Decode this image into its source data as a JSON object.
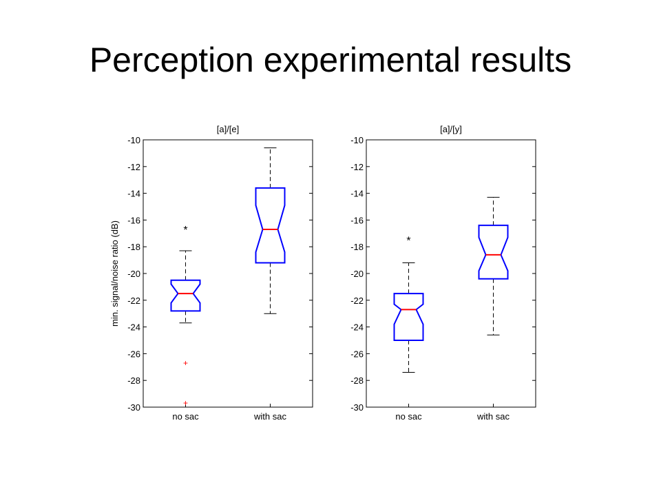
{
  "slide": {
    "title": "Perception experimental results"
  },
  "colors": {
    "box": "#0000ff",
    "median": "#ff0000",
    "outlier": "#ff0000",
    "whisker": "#000000",
    "axes": "#000000"
  },
  "chart_data": [
    {
      "type": "boxplot",
      "notched": true,
      "title": "[a]/[e]",
      "ylabel": "min. signal/noise ratio (dB)",
      "xlabel": "",
      "ylim": [
        -30,
        -10
      ],
      "yticks": [
        -10,
        -12,
        -14,
        -16,
        -18,
        -20,
        -22,
        -24,
        -26,
        -28,
        -30
      ],
      "categories": [
        "no sac",
        "with sac"
      ],
      "boxes": [
        {
          "category": "no sac",
          "whisker_low": -23.7,
          "q1": -22.8,
          "median": -21.5,
          "q3": -20.5,
          "whisker_high": -18.3,
          "notch_low": -22.2,
          "notch_high": -20.8,
          "outliers": [
            -26.7,
            -29.7
          ]
        },
        {
          "category": "with sac",
          "whisker_low": -23.0,
          "q1": -19.2,
          "median": -16.7,
          "q3": -13.6,
          "whisker_high": -10.6,
          "notch_low": -18.4,
          "notch_high": -14.9,
          "outliers": []
        }
      ],
      "annotations": [
        {
          "text": "*",
          "category": "no sac",
          "y": -16.5
        }
      ],
      "grid": false
    },
    {
      "type": "boxplot",
      "notched": true,
      "title": "[a]/[y]",
      "ylabel": "",
      "xlabel": "",
      "ylim": [
        -30,
        -10
      ],
      "yticks": [
        -10,
        -12,
        -14,
        -16,
        -18,
        -20,
        -22,
        -24,
        -26,
        -28,
        -30
      ],
      "categories": [
        "no sac",
        "with sac"
      ],
      "boxes": [
        {
          "category": "no sac",
          "whisker_low": -27.4,
          "q1": -25.0,
          "median": -22.7,
          "q3": -21.5,
          "whisker_high": -19.2,
          "notch_low": -23.8,
          "notch_high": -22.3,
          "outliers": []
        },
        {
          "category": "with sac",
          "whisker_low": -24.6,
          "q1": -20.4,
          "median": -18.6,
          "q3": -16.4,
          "whisker_high": -14.3,
          "notch_low": -19.8,
          "notch_high": -17.3,
          "outliers": []
        }
      ],
      "annotations": [
        {
          "text": "*",
          "category": "no sac",
          "y": -17.3
        }
      ],
      "grid": false
    }
  ]
}
